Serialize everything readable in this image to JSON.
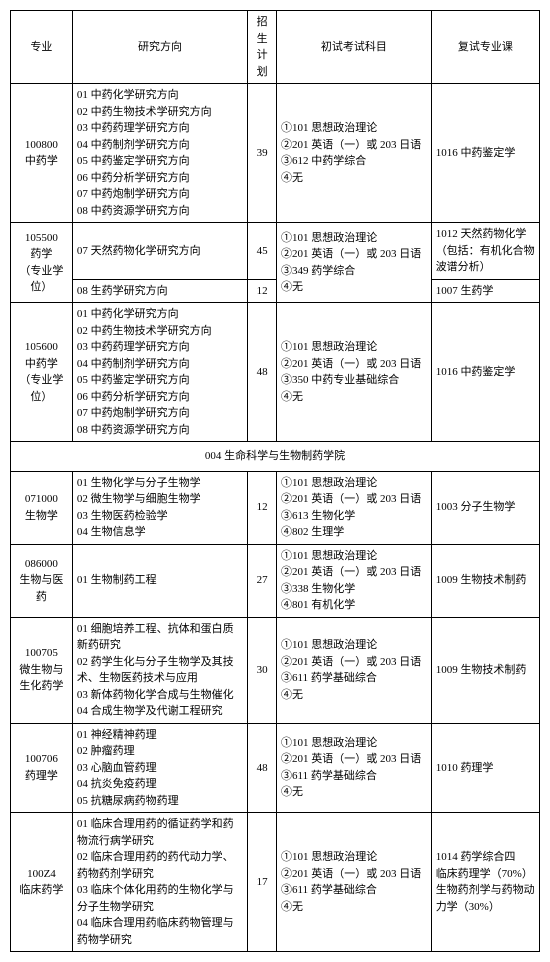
{
  "headers": {
    "major": "专业",
    "direction": "研究方向",
    "plan": "招生\n计划",
    "exam": "初试考试科目",
    "course": "复试专业课"
  },
  "section_title": "004 生命科学与生物制药学院",
  "rows": [
    {
      "major": "100800\n中药学",
      "dir": "01 中药化学研究方向\n02 中药生物技术学研究方向\n03 中药药理学研究方向\n04 中药制剂学研究方向\n05 中药鉴定学研究方向\n06 中药分析学研究方向\n07 中药炮制学研究方向\n08 中药资源学研究方向",
      "plan": "39",
      "exam": "①101 思想政治理论\n②201 英语（一）或 203 日语\n③612 中药学综合\n④无",
      "course": "1016 中药鉴定学"
    },
    {
      "major": "105500\n药学\n（专业学位）",
      "dir": "07 天然药物化学研究方向",
      "plan": "45",
      "exam": "①101 思想政治理论\n②201 英语（一）或 203 日语\n③349 药学综合\n④无",
      "exam_rowspan": 2,
      "course": "1012 天然药物化学（包括：有机化合物波谱分析）"
    },
    {
      "dir": "08 生药学研究方向",
      "plan": "12",
      "course": "1007 生药学"
    },
    {
      "major": "105600\n中药学\n（专业学位）",
      "dir": "01 中药化学研究方向\n02 中药生物技术学研究方向\n03 中药药理学研究方向\n04 中药制剂学研究方向\n05 中药鉴定学研究方向\n06 中药分析学研究方向\n07 中药炮制学研究方向\n08 中药资源学研究方向",
      "plan": "48",
      "exam": "①101 思想政治理论\n②201 英语（一）或 203 日语\n③350 中药专业基础综合\n④无",
      "course": "1016 中药鉴定学"
    }
  ],
  "rows2": [
    {
      "major": "071000\n生物学",
      "dir": "01 生物化学与分子生物学\n02 微生物学与细胞生物学\n03 生物医药检验学\n04 生物信息学",
      "plan": "12",
      "exam": "①101 思想政治理论\n②201 英语（一）或 203 日语\n③613 生物化学\n④802 生理学",
      "course": "1003 分子生物学"
    },
    {
      "major": "086000\n生物与医药",
      "dir": "01 生物制药工程",
      "plan": "27",
      "exam": "①101 思想政治理论\n②201 英语（一）或 203 日语\n③338 生物化学\n④801 有机化学",
      "course": "1009 生物技术制药"
    },
    {
      "major": "100705\n微生物与生化药学",
      "dir": "01 细胞培养工程、抗体和蛋白质新药研究\n02 药学生化与分子生物学及其技术、生物医药技术与应用\n03 新体药物化学合成与生物催化\n04 合成生物学及代谢工程研究",
      "plan": "30",
      "exam": "①101 思想政治理论\n②201 英语（一）或 203 日语\n③611 药学基础综合\n④无",
      "course": "1009 生物技术制药"
    },
    {
      "major": "100706\n药理学",
      "dir": "01 神经精神药理\n02 肿瘤药理\n03 心脑血管药理\n04 抗炎免疫药理\n05 抗糖尿病药物药理",
      "plan": "48",
      "exam": "①101 思想政治理论\n②201 英语（一）或 203 日语\n③611 药学基础综合\n④无",
      "course": "1010 药理学"
    },
    {
      "major": "100Z4\n临床药学",
      "dir": "01 临床合理用药的循证药学和药物流行病学研究\n02 临床合理用药的药代动力学、药物药剂学研究\n03 临床个体化用药的生物化学与分子生物学研究\n04 临床合理用药临床药物管理与药物学研究",
      "plan": "17",
      "exam": "①101 思想政治理论\n②201 英语（一）或 203 日语\n③611 药学基础综合\n④无",
      "course": "1014 药学综合四\n临床药理学（70%）\n生物药剂学与药物动力学（30%）"
    }
  ]
}
